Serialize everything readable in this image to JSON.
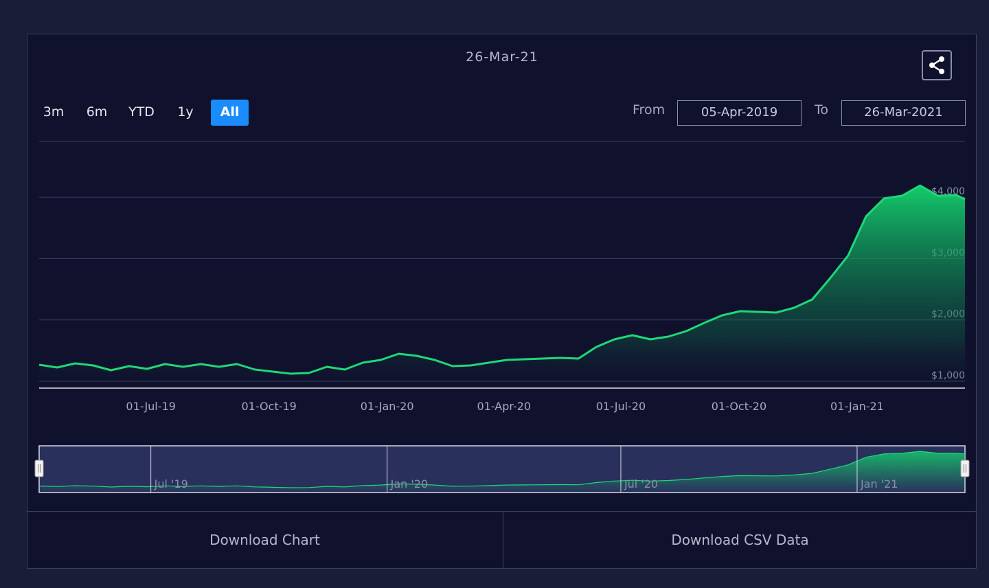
{
  "title": "26-Mar-21",
  "range_buttons": [
    "3m",
    "6m",
    "YTD",
    "1y",
    "All"
  ],
  "selected_range": 4,
  "from_label": "From",
  "from_date": "05-Apr-2019",
  "to_label": "To",
  "to_date": "26-Mar-2021",
  "download_buttons": [
    "Download Chart",
    "Download CSV Data"
  ],
  "chart_data": {
    "type": "area",
    "color": "#1ed877",
    "x": [
      "2019-04-05",
      "2019-04-19",
      "2019-05-03",
      "2019-05-17",
      "2019-05-31",
      "2019-06-14",
      "2019-06-28",
      "2019-07-12",
      "2019-07-26",
      "2019-08-09",
      "2019-08-23",
      "2019-09-06",
      "2019-09-20",
      "2019-10-04",
      "2019-10-18",
      "2019-11-01",
      "2019-11-15",
      "2019-11-29",
      "2019-12-13",
      "2019-12-27",
      "2020-01-10",
      "2020-01-24",
      "2020-02-07",
      "2020-02-21",
      "2020-03-06",
      "2020-03-20",
      "2020-04-03",
      "2020-04-17",
      "2020-05-01",
      "2020-05-15",
      "2020-05-29",
      "2020-06-12",
      "2020-06-26",
      "2020-07-10",
      "2020-07-24",
      "2020-08-07",
      "2020-08-21",
      "2020-09-04",
      "2020-09-18",
      "2020-10-02",
      "2020-10-16",
      "2020-10-30",
      "2020-11-13",
      "2020-11-27",
      "2020-12-11",
      "2020-12-25",
      "2021-01-08",
      "2021-01-22",
      "2021-02-05",
      "2021-02-19",
      "2021-03-05",
      "2021-03-19",
      "2021-03-26"
    ],
    "values": [
      1269,
      1224,
      1291,
      1258,
      1179,
      1246,
      1202,
      1280,
      1235,
      1280,
      1235,
      1280,
      1190,
      1157,
      1123,
      1134,
      1235,
      1190,
      1302,
      1347,
      1448,
      1414,
      1347,
      1246,
      1258,
      1302,
      1347,
      1358,
      1370,
      1381,
      1370,
      1560,
      1683,
      1750,
      1683,
      1728,
      1817,
      1952,
      2075,
      2142,
      2131,
      2120,
      2198,
      2333,
      2680,
      3049,
      3688,
      3979,
      4023,
      4191,
      4023,
      4035,
      3967
    ],
    "xlim": [
      "2019-04-05",
      "2021-03-26"
    ],
    "xticks": [
      {
        "value": "2019-07-01",
        "label": "01-Jul-19"
      },
      {
        "value": "2019-10-01",
        "label": "01-Oct-19"
      },
      {
        "value": "2020-01-01",
        "label": "01-Jan-20"
      },
      {
        "value": "2020-04-01",
        "label": "01-Apr-20"
      },
      {
        "value": "2020-07-01",
        "label": "01-Jul-20"
      },
      {
        "value": "2020-10-01",
        "label": "01-Oct-20"
      },
      {
        "value": "2021-01-01",
        "label": "01-Jan-21"
      }
    ],
    "ylim": [
      888,
      4919
    ],
    "yticks": [
      {
        "value": 1000,
        "label": "$1,000"
      },
      {
        "value": 2000,
        "label": "$2,000"
      },
      {
        "value": 3000,
        "label": "$3,000"
      },
      {
        "value": 4000,
        "label": "$4,000"
      }
    ],
    "grid": true
  },
  "navigator": {
    "xticks": [
      {
        "value": "2019-07-01",
        "label": "Jul '19"
      },
      {
        "value": "2020-01-01",
        "label": "Jan '20"
      },
      {
        "value": "2020-07-01",
        "label": "Jul '20"
      },
      {
        "value": "2021-01-01",
        "label": "Jan '21"
      }
    ]
  }
}
